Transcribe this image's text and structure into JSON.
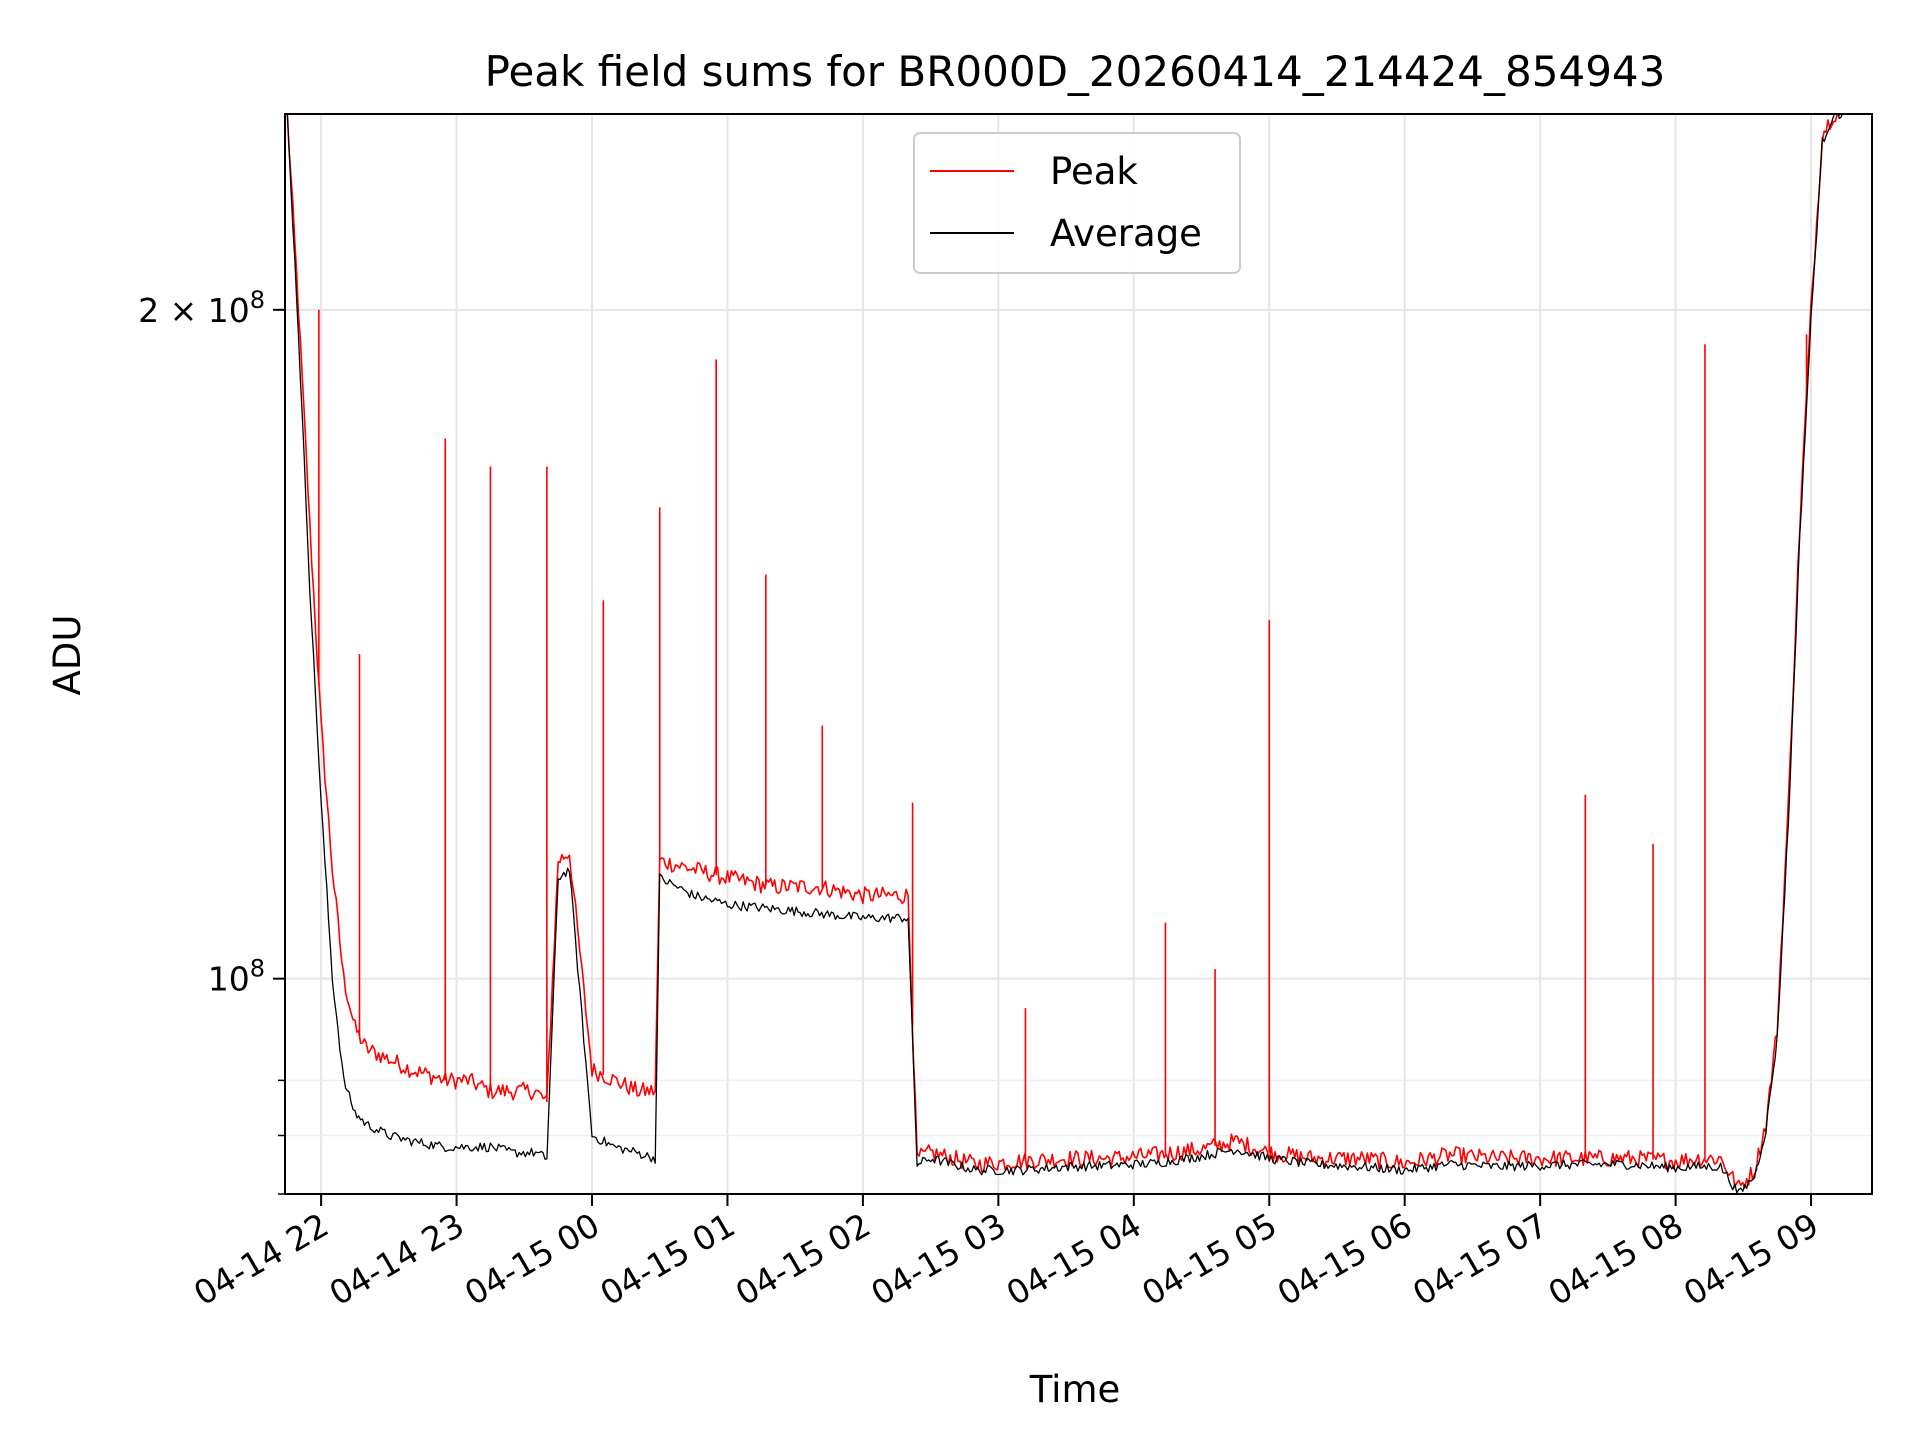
{
  "chart_data": {
    "type": "line",
    "title": "Peak field sums for BR000D_20260414_214424_854943",
    "xlabel": "Time",
    "ylabel": "ADU",
    "yscale": "log",
    "xlim": [
      "2026-04-14 21:44",
      "2026-04-15 09:27"
    ],
    "ylim": [
      80000000,
      245000000
    ],
    "grid": true,
    "legend_position": "top-center",
    "x_ticks": [
      "04-14 22",
      "04-14 23",
      "04-15 00",
      "04-15 01",
      "04-15 02",
      "04-15 03",
      "04-15 04",
      "04-15 05",
      "04-15 06",
      "04-15 07",
      "04-15 08",
      "04-15 09"
    ],
    "y_tick_labels": {
      "major": [
        {
          "value": 100000000,
          "base": "10",
          "exp": "8"
        },
        {
          "value": 200000000,
          "coef": "2",
          "base": "10",
          "exp": "8"
        }
      ],
      "minor": [
        90000000,
        85000000,
        80000000
      ]
    },
    "x_tick_times": [
      "2026-04-14 22:00",
      "2026-04-14 23:00",
      "2026-04-15 00:00",
      "2026-04-15 01:00",
      "2026-04-15 02:00",
      "2026-04-15 03:00",
      "2026-04-15 04:00",
      "2026-04-15 05:00",
      "2026-04-15 06:00",
      "2026-04-15 07:00",
      "2026-04-15 08:00",
      "2026-04-15 09:00"
    ],
    "series": [
      {
        "name": "Peak",
        "color": "#ff0000",
        "x": [
          "2026-04-14 21:45",
          "2026-04-14 21:50",
          "2026-04-14 21:55",
          "2026-04-14 22:00",
          "2026-04-14 22:05",
          "2026-04-14 22:10",
          "2026-04-14 22:15",
          "2026-04-14 22:20",
          "2026-04-14 22:30",
          "2026-04-14 22:40",
          "2026-04-14 22:55",
          "2026-04-14 23:05",
          "2026-04-14 23:15",
          "2026-04-14 23:25",
          "2026-04-14 23:35",
          "2026-04-14 23:40",
          "2026-04-14 23:45",
          "2026-04-14 23:50",
          "2026-04-15 00:00",
          "2026-04-15 00:10",
          "2026-04-15 00:20",
          "2026-04-15 00:28",
          "2026-04-15 00:30",
          "2026-04-15 00:45",
          "2026-04-15 01:00",
          "2026-04-15 01:20",
          "2026-04-15 01:40",
          "2026-04-15 02:00",
          "2026-04-15 02:20",
          "2026-04-15 02:24",
          "2026-04-15 02:30",
          "2026-04-15 02:50",
          "2026-04-15 03:10",
          "2026-04-15 03:30",
          "2026-04-15 03:50",
          "2026-04-15 04:10",
          "2026-04-15 04:30",
          "2026-04-15 04:45",
          "2026-04-15 05:00",
          "2026-04-15 05:20",
          "2026-04-15 05:40",
          "2026-04-15 06:00",
          "2026-04-15 06:20",
          "2026-04-15 06:40",
          "2026-04-15 07:00",
          "2026-04-15 07:20",
          "2026-04-15 07:40",
          "2026-04-15 08:00",
          "2026-04-15 08:10",
          "2026-04-15 08:20",
          "2026-04-15 08:28",
          "2026-04-15 08:35",
          "2026-04-15 08:40",
          "2026-04-15 08:45",
          "2026-04-15 08:50",
          "2026-04-15 08:55",
          "2026-04-15 09:00",
          "2026-04-15 09:05",
          "2026-04-15 09:10",
          "2026-04-15 09:15"
        ],
        "y": [
          245000000,
          200000000,
          160000000,
          130000000,
          112000000,
          100000000,
          95000000,
          93000000,
          92000000,
          91000000,
          90000000,
          90000000,
          89000000,
          89000000,
          89000000,
          88000000,
          113000000,
          114000000,
          91000000,
          90000000,
          89000000,
          89000000,
          113000000,
          112000000,
          111000000,
          110000000,
          110000000,
          109000000,
          109000000,
          83000000,
          83500000,
          82500000,
          82800000,
          83000000,
          83000000,
          83300000,
          83800000,
          84500000,
          83500000,
          83000000,
          83000000,
          82600000,
          83300000,
          83000000,
          83000000,
          83000000,
          83000000,
          82800000,
          83000000,
          83000000,
          80500000,
          82000000,
          86000000,
          95000000,
          120000000,
          160000000,
          200000000,
          240000000,
          245000000,
          245000000
        ],
        "spikes": [
          {
            "x": "2026-04-14 21:59",
            "y": 200000000
          },
          {
            "x": "2026-04-14 22:17",
            "y": 140000000
          },
          {
            "x": "2026-04-14 22:55",
            "y": 175000000
          },
          {
            "x": "2026-04-14 23:15",
            "y": 170000000
          },
          {
            "x": "2026-04-14 23:40",
            "y": 170000000
          },
          {
            "x": "2026-04-15 00:05",
            "y": 148000000
          },
          {
            "x": "2026-04-15 00:30",
            "y": 163000000
          },
          {
            "x": "2026-04-15 00:55",
            "y": 190000000
          },
          {
            "x": "2026-04-15 01:17",
            "y": 152000000
          },
          {
            "x": "2026-04-15 01:42",
            "y": 130000000
          },
          {
            "x": "2026-04-15 02:22",
            "y": 120000000
          },
          {
            "x": "2026-04-15 03:12",
            "y": 97000000
          },
          {
            "x": "2026-04-15 04:14",
            "y": 106000000
          },
          {
            "x": "2026-04-15 04:36",
            "y": 101000000
          },
          {
            "x": "2026-04-15 05:00",
            "y": 145000000
          },
          {
            "x": "2026-04-15 07:20",
            "y": 121000000
          },
          {
            "x": "2026-04-15 07:50",
            "y": 115000000
          },
          {
            "x": "2026-04-15 08:13",
            "y": 193000000
          },
          {
            "x": "2026-04-15 08:58",
            "y": 195000000
          }
        ]
      },
      {
        "name": "Average",
        "color": "#000000",
        "x": [
          "2026-04-14 21:45",
          "2026-04-14 21:50",
          "2026-04-14 21:55",
          "2026-04-14 22:00",
          "2026-04-14 22:05",
          "2026-04-14 22:10",
          "2026-04-14 22:15",
          "2026-04-14 22:20",
          "2026-04-14 22:30",
          "2026-04-14 22:40",
          "2026-04-14 22:55",
          "2026-04-14 23:05",
          "2026-04-14 23:15",
          "2026-04-14 23:25",
          "2026-04-14 23:35",
          "2026-04-14 23:40",
          "2026-04-14 23:45",
          "2026-04-14 23:50",
          "2026-04-15 00:00",
          "2026-04-15 00:10",
          "2026-04-15 00:20",
          "2026-04-15 00:28",
          "2026-04-15 00:30",
          "2026-04-15 00:45",
          "2026-04-15 01:00",
          "2026-04-15 01:20",
          "2026-04-15 01:40",
          "2026-04-15 02:00",
          "2026-04-15 02:20",
          "2026-04-15 02:24",
          "2026-04-15 02:30",
          "2026-04-15 02:50",
          "2026-04-15 03:10",
          "2026-04-15 03:30",
          "2026-04-15 03:50",
          "2026-04-15 04:10",
          "2026-04-15 04:30",
          "2026-04-15 04:45",
          "2026-04-15 05:00",
          "2026-04-15 05:20",
          "2026-04-15 05:40",
          "2026-04-15 06:00",
          "2026-04-15 06:20",
          "2026-04-15 06:40",
          "2026-04-15 07:00",
          "2026-04-15 07:20",
          "2026-04-15 07:40",
          "2026-04-15 08:00",
          "2026-04-15 08:10",
          "2026-04-15 08:20",
          "2026-04-15 08:28",
          "2026-04-15 08:35",
          "2026-04-15 08:40",
          "2026-04-15 08:45",
          "2026-04-15 08:50",
          "2026-04-15 08:55",
          "2026-04-15 09:00",
          "2026-04-15 09:05",
          "2026-04-15 09:10",
          "2026-04-15 09:15"
        ],
        "y": [
          245000000,
          195000000,
          150000000,
          120000000,
          100000000,
          90000000,
          87000000,
          86000000,
          85000000,
          84500000,
          84000000,
          84000000,
          84000000,
          83500000,
          83500000,
          83000000,
          111000000,
          112000000,
          85000000,
          84000000,
          83500000,
          83000000,
          111000000,
          109000000,
          108000000,
          107500000,
          107000000,
          106500000,
          106500000,
          82500000,
          83000000,
          82000000,
          82000000,
          82300000,
          82400000,
          82600000,
          83200000,
          83800000,
          83000000,
          82500000,
          82300000,
          82000000,
          82500000,
          82300000,
          82400000,
          82500000,
          82500000,
          82200000,
          82300000,
          82300000,
          80000000,
          81500000,
          85500000,
          94000000,
          118000000,
          158000000,
          198000000,
          238000000,
          245000000,
          245000000
        ]
      }
    ]
  }
}
